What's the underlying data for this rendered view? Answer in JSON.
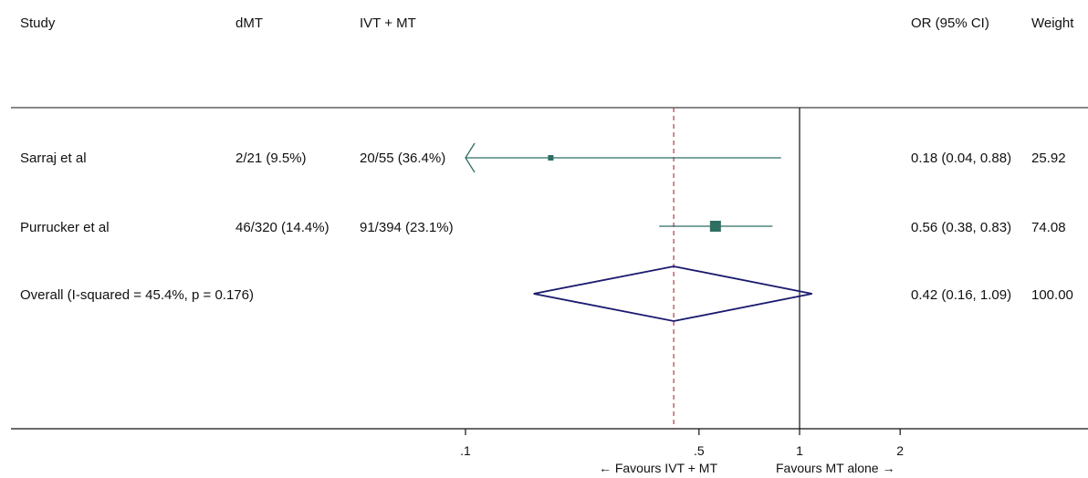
{
  "chart_data": {
    "type": "forest",
    "x_scale": "log",
    "columns": {
      "study": "Study",
      "dmt": "dMT",
      "ivt": "IVT + MT",
      "or": "OR (95% CI)",
      "weight": "Weight"
    },
    "studies": [
      {
        "name": "Sarraj et al",
        "dmt": "2/21 (9.5%)",
        "ivt": "20/55 (36.4%)",
        "or": 0.18,
        "ci": [
          0.04,
          0.88
        ],
        "or_text": "0.18 (0.04, 0.88)",
        "weight": "25.92",
        "ci_truncated_left": true
      },
      {
        "name": "Purrucker et al",
        "dmt": "46/320 (14.4%)",
        "ivt": "91/394 (23.1%)",
        "or": 0.56,
        "ci": [
          0.38,
          0.83
        ],
        "or_text": "0.56 (0.38, 0.83)",
        "weight": "74.08",
        "ci_truncated_left": false
      }
    ],
    "overall": {
      "label": "Overall  (I-squared = 45.4%, p = 0.176)",
      "or": 0.42,
      "ci": [
        0.16,
        1.09
      ],
      "or_text": "0.42 (0.16, 1.09)",
      "weight": "100.00"
    },
    "x_ticks": [
      {
        "value": 0.1,
        "label": ".1"
      },
      {
        "value": 0.5,
        "label": ".5"
      },
      {
        "value": 1,
        "label": "1"
      },
      {
        "value": 2,
        "label": "2"
      }
    ],
    "x_range": [
      0.1,
      2
    ],
    "null_line": 1,
    "favours_left": "← Favours IVT + MT",
    "favours_right": "Favours MT alone →",
    "colors": {
      "study": "#2e6e63",
      "overall": "#1a1a6e",
      "overall_line": "#b03a48",
      "axis": "#111111"
    }
  }
}
